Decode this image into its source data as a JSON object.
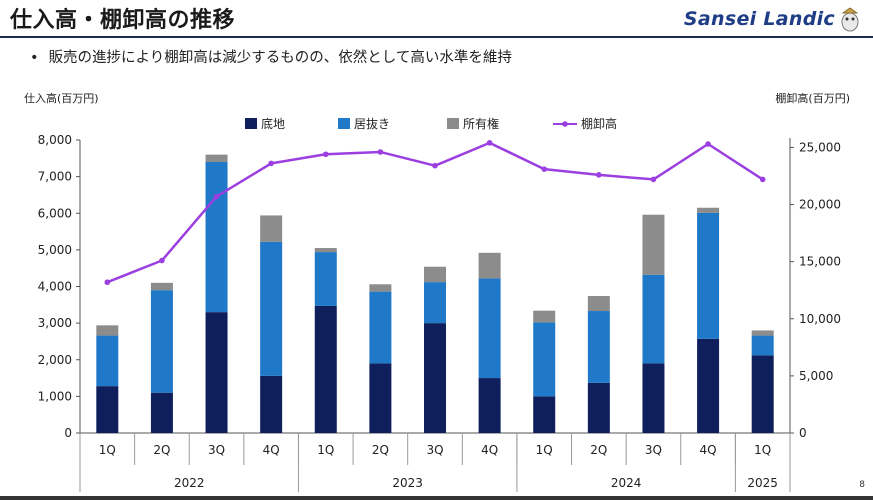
{
  "page": {
    "title": "仕入高・棚卸高の推移",
    "bullet": "•",
    "subtitle": "販売の進捗により棚卸高は減少するものの、依然として高い水準を維持",
    "brand": "Sansei Landic",
    "page_number": "8"
  },
  "chart_data": {
    "type": "bar",
    "stacked": true,
    "ylabel_left": "仕入高(百万円)",
    "ylabel_right": "棚卸高(百万円)",
    "left_ylim": [
      0,
      8000
    ],
    "left_ticks": [
      "0",
      "1,000",
      "2,000",
      "3,000",
      "4,000",
      "5,000",
      "6,000",
      "7,000",
      "8,000"
    ],
    "right_ylim": [
      0,
      26000
    ],
    "right_ticks": [
      "0",
      "5,000",
      "10,000",
      "15,000",
      "20,000",
      "25,000"
    ],
    "categories": [
      "1Q",
      "2Q",
      "3Q",
      "4Q",
      "1Q",
      "2Q",
      "3Q",
      "4Q",
      "1Q",
      "2Q",
      "3Q",
      "4Q",
      "1Q"
    ],
    "year_groups": [
      {
        "label": "2022",
        "count": 4
      },
      {
        "label": "2023",
        "count": 4
      },
      {
        "label": "2024",
        "count": 4
      },
      {
        "label": "2025",
        "count": 1
      }
    ],
    "series": [
      {
        "name": "底地",
        "color": "#0f1f5c",
        "values": [
          1280,
          1100,
          3300,
          1560,
          3470,
          1900,
          3000,
          1500,
          1000,
          1370,
          1900,
          2570,
          2120
        ]
      },
      {
        "name": "居抜き",
        "color": "#1f78c8",
        "values": [
          1380,
          2800,
          4100,
          3660,
          1470,
          1960,
          1120,
          2720,
          2020,
          1960,
          2420,
          3440,
          540
        ]
      },
      {
        "name": "所有権",
        "color": "#8c8c8c",
        "values": [
          280,
          200,
          200,
          720,
          110,
          200,
          420,
          700,
          320,
          410,
          1640,
          140,
          140
        ]
      }
    ],
    "line": {
      "name": "棚卸高",
      "color": "#9b3fe0",
      "values": [
        13200,
        15100,
        20700,
        23600,
        24400,
        24600,
        23400,
        25400,
        23100,
        22600,
        22200,
        25300,
        22200
      ]
    },
    "legend_position": "top",
    "grid": false
  }
}
